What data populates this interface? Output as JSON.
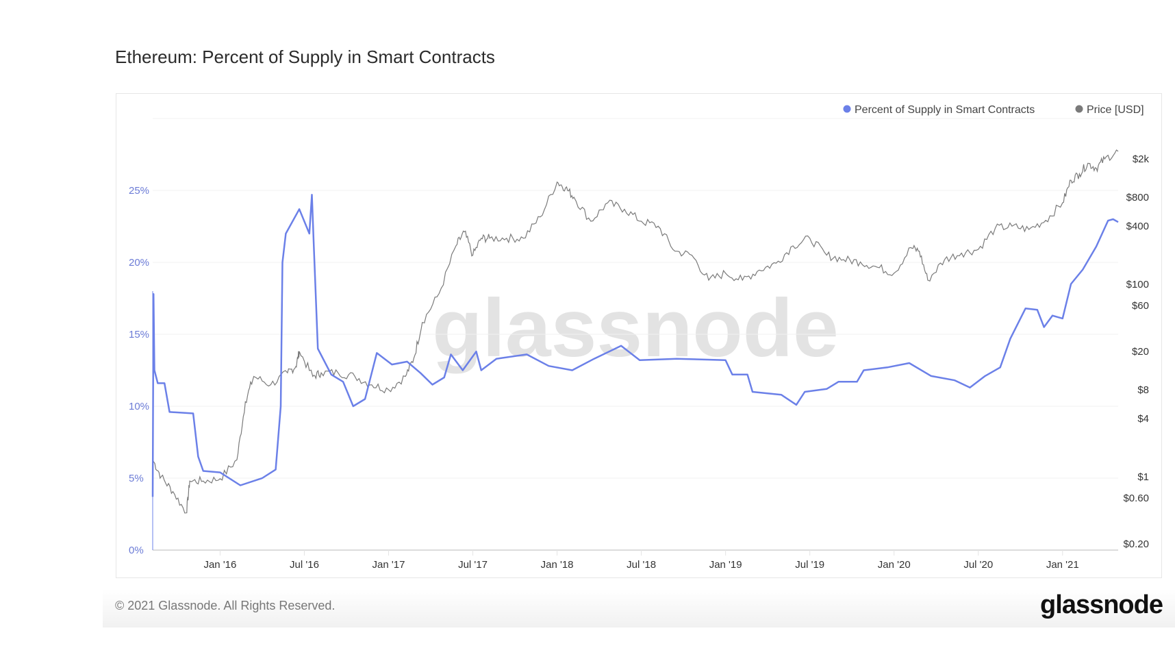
{
  "title": "Ethereum: Percent of Supply in Smart Contracts",
  "footer": {
    "copyright": "© 2021 Glassnode. All Rights Reserved.",
    "logo": "glassnode"
  },
  "watermark": "glassnode",
  "chart_data": {
    "type": "line",
    "title": "Ethereum: Percent of Supply in Smart Contracts",
    "legend_position": "top-right",
    "x_range": [
      2015.6,
      2021.33
    ],
    "x_ticks": [
      {
        "label": "Jan '16",
        "value": 2016.0
      },
      {
        "label": "Jul '16",
        "value": 2016.5
      },
      {
        "label": "Jan '17",
        "value": 2017.0
      },
      {
        "label": "Jul '17",
        "value": 2017.5
      },
      {
        "label": "Jan '18",
        "value": 2018.0
      },
      {
        "label": "Jul '18",
        "value": 2018.5
      },
      {
        "label": "Jan '19",
        "value": 2019.0
      },
      {
        "label": "Jul '19",
        "value": 2019.5
      },
      {
        "label": "Jan '20",
        "value": 2020.0
      },
      {
        "label": "Jul '20",
        "value": 2020.5
      },
      {
        "label": "Jan '21",
        "value": 2021.0
      }
    ],
    "y_left": {
      "label": "Percent",
      "range": [
        0,
        30
      ],
      "ticks": [
        {
          "label": "0%",
          "value": 0
        },
        {
          "label": "5%",
          "value": 5
        },
        {
          "label": "10%",
          "value": 10
        },
        {
          "label": "15%",
          "value": 15
        },
        {
          "label": "20%",
          "value": 20
        },
        {
          "label": "25%",
          "value": 25
        }
      ]
    },
    "y_right": {
      "label": "Price [USD]",
      "scale": "log",
      "range": [
        0.2,
        2000
      ],
      "ticks": [
        {
          "label": "$0.20",
          "value": 0.2
        },
        {
          "label": "$0.60",
          "value": 0.6
        },
        {
          "label": "$1",
          "value": 1
        },
        {
          "label": "$4",
          "value": 4
        },
        {
          "label": "$8",
          "value": 8
        },
        {
          "label": "$20",
          "value": 20
        },
        {
          "label": "$60",
          "value": 60
        },
        {
          "label": "$100",
          "value": 100
        },
        {
          "label": "$400",
          "value": 400
        },
        {
          "label": "$800",
          "value": 800
        },
        {
          "label": "$2k",
          "value": 2000
        }
      ]
    },
    "series": [
      {
        "name": "Percent of Supply in Smart Contracts",
        "color": "#6b80e8",
        "axis": "left",
        "points": [
          [
            2015.6,
            3.7
          ],
          [
            2015.605,
            17.8
          ],
          [
            2015.61,
            12.5
          ],
          [
            2015.63,
            11.6
          ],
          [
            2015.67,
            11.6
          ],
          [
            2015.7,
            9.6
          ],
          [
            2015.84,
            9.5
          ],
          [
            2015.87,
            6.5
          ],
          [
            2015.9,
            5.5
          ],
          [
            2016.0,
            5.4
          ],
          [
            2016.12,
            4.5
          ],
          [
            2016.25,
            5.0
          ],
          [
            2016.33,
            5.6
          ],
          [
            2016.36,
            10
          ],
          [
            2016.37,
            20
          ],
          [
            2016.39,
            22
          ],
          [
            2016.47,
            23.7
          ],
          [
            2016.53,
            22
          ],
          [
            2016.545,
            24.7
          ],
          [
            2016.555,
            21.5
          ],
          [
            2016.58,
            14
          ],
          [
            2016.66,
            12.2
          ],
          [
            2016.73,
            11.7
          ],
          [
            2016.79,
            10
          ],
          [
            2016.86,
            10.5
          ],
          [
            2016.93,
            13.7
          ],
          [
            2017.02,
            12.9
          ],
          [
            2017.11,
            13.1
          ],
          [
            2017.19,
            12.3
          ],
          [
            2017.26,
            11.5
          ],
          [
            2017.33,
            12
          ],
          [
            2017.37,
            13.6
          ],
          [
            2017.44,
            12.5
          ],
          [
            2017.52,
            13.8
          ],
          [
            2017.55,
            12.5
          ],
          [
            2017.64,
            13.3
          ],
          [
            2017.82,
            13.6
          ],
          [
            2017.95,
            12.8
          ],
          [
            2018.09,
            12.5
          ],
          [
            2018.22,
            13.3
          ],
          [
            2018.38,
            14.2
          ],
          [
            2018.49,
            13.2
          ],
          [
            2018.71,
            13.3
          ],
          [
            2019.0,
            13.2
          ],
          [
            2019.04,
            12.2
          ],
          [
            2019.13,
            12.2
          ],
          [
            2019.16,
            11
          ],
          [
            2019.33,
            10.8
          ],
          [
            2019.42,
            10.1
          ],
          [
            2019.47,
            11
          ],
          [
            2019.6,
            11.2
          ],
          [
            2019.67,
            11.7
          ],
          [
            2019.78,
            11.7
          ],
          [
            2019.82,
            12.5
          ],
          [
            2019.96,
            12.7
          ],
          [
            2020.09,
            13.0
          ],
          [
            2020.22,
            12.1
          ],
          [
            2020.36,
            11.8
          ],
          [
            2020.45,
            11.3
          ],
          [
            2020.54,
            12.1
          ],
          [
            2020.63,
            12.7
          ],
          [
            2020.69,
            14.7
          ],
          [
            2020.78,
            16.8
          ],
          [
            2020.85,
            16.7
          ],
          [
            2020.89,
            15.5
          ],
          [
            2020.94,
            16.3
          ],
          [
            2021.0,
            16.1
          ],
          [
            2021.05,
            18.5
          ],
          [
            2021.12,
            19.5
          ],
          [
            2021.2,
            21.1
          ],
          [
            2021.27,
            22.9
          ],
          [
            2021.3,
            23.0
          ],
          [
            2021.33,
            22.8
          ]
        ]
      },
      {
        "name": "Price [USD]",
        "color": "#7a7a7a",
        "axis": "right",
        "points": [
          [
            2015.6,
            1.5
          ],
          [
            2015.65,
            1.0
          ],
          [
            2015.72,
            0.7
          ],
          [
            2015.8,
            0.42
          ],
          [
            2015.82,
            0.9
          ],
          [
            2015.9,
            0.9
          ],
          [
            2016.0,
            0.95
          ],
          [
            2016.1,
            1.5
          ],
          [
            2016.15,
            6
          ],
          [
            2016.2,
            11
          ],
          [
            2016.3,
            9
          ],
          [
            2016.4,
            12
          ],
          [
            2016.45,
            14
          ],
          [
            2016.47,
            20
          ],
          [
            2016.55,
            11
          ],
          [
            2016.6,
            12
          ],
          [
            2016.7,
            12
          ],
          [
            2016.8,
            11
          ],
          [
            2016.9,
            9
          ],
          [
            2017.0,
            8
          ],
          [
            2017.1,
            11
          ],
          [
            2017.15,
            17
          ],
          [
            2017.2,
            40
          ],
          [
            2017.3,
            80
          ],
          [
            2017.4,
            250
          ],
          [
            2017.45,
            350
          ],
          [
            2017.5,
            200
          ],
          [
            2017.55,
            300
          ],
          [
            2017.6,
            300
          ],
          [
            2017.7,
            300
          ],
          [
            2017.8,
            300
          ],
          [
            2017.9,
            500
          ],
          [
            2018.0,
            1150
          ],
          [
            2018.05,
            1000
          ],
          [
            2018.1,
            800
          ],
          [
            2018.2,
            450
          ],
          [
            2018.3,
            700
          ],
          [
            2018.4,
            600
          ],
          [
            2018.5,
            450
          ],
          [
            2018.6,
            400
          ],
          [
            2018.7,
            220
          ],
          [
            2018.8,
            200
          ],
          [
            2018.9,
            110
          ],
          [
            2019.0,
            130
          ],
          [
            2019.1,
            110
          ],
          [
            2019.2,
            140
          ],
          [
            2019.3,
            165
          ],
          [
            2019.4,
            250
          ],
          [
            2019.5,
            300
          ],
          [
            2019.6,
            200
          ],
          [
            2019.7,
            180
          ],
          [
            2019.8,
            170
          ],
          [
            2019.9,
            150
          ],
          [
            2020.0,
            130
          ],
          [
            2020.1,
            240
          ],
          [
            2020.15,
            220
          ],
          [
            2020.2,
            110
          ],
          [
            2020.3,
            180
          ],
          [
            2020.4,
            210
          ],
          [
            2020.5,
            230
          ],
          [
            2020.6,
            380
          ],
          [
            2020.7,
            400
          ],
          [
            2020.8,
            370
          ],
          [
            2020.9,
            460
          ],
          [
            2021.0,
            700
          ],
          [
            2021.05,
            1200
          ],
          [
            2021.1,
            1400
          ],
          [
            2021.15,
            1800
          ],
          [
            2021.2,
            1600
          ],
          [
            2021.25,
            2000
          ],
          [
            2021.33,
            2400
          ]
        ]
      }
    ]
  }
}
